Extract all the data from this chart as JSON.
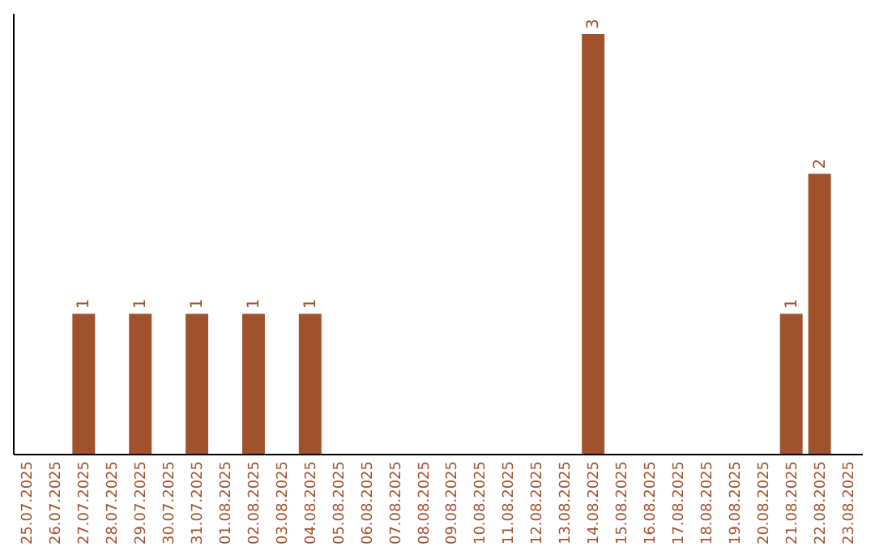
{
  "chart_data": {
    "type": "bar",
    "categories": [
      "25.07.2025",
      "26.07.2025",
      "27.07.2025",
      "28.07.2025",
      "29.07.2025",
      "30.07.2025",
      "31.07.2025",
      "01.08.2025",
      "02.08.2025",
      "03.08.2025",
      "04.08.2025",
      "05.08.2025",
      "06.08.2025",
      "07.08.2025",
      "08.08.2025",
      "09.08.2025",
      "10.08.2025",
      "11.08.2025",
      "12.08.2025",
      "13.08.2025",
      "14.08.2025",
      "15.08.2025",
      "16.08.2025",
      "17.08.2025",
      "18.08.2025",
      "19.08.2025",
      "20.08.2025",
      "21.08.2025",
      "22.08.2025",
      "23.08.2025"
    ],
    "values": [
      null,
      null,
      1,
      null,
      1,
      null,
      1,
      null,
      1,
      null,
      1,
      null,
      null,
      null,
      null,
      null,
      null,
      null,
      null,
      null,
      3,
      null,
      null,
      null,
      null,
      null,
      null,
      1,
      2,
      null
    ],
    "color": "#a0522d",
    "ylim": [
      0,
      3.15
    ],
    "data_labels": true,
    "tick_labels": "x"
  }
}
